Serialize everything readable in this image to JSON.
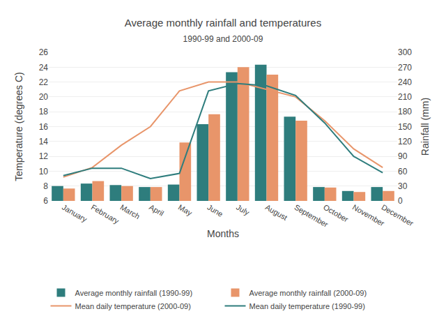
{
  "chart_data": {
    "type": "bar",
    "title": "Average monthly rainfall and temperatures",
    "subtitle": "1990-99 and 2000-09",
    "xlabel": "Months",
    "ylabel": "Temperature (degrees C)",
    "y2label": "Rainfall (mm)",
    "categories": [
      "January",
      "February",
      "March",
      "April",
      "May",
      "June",
      "July",
      "August",
      "September",
      "October",
      "November",
      "December"
    ],
    "series": [
      {
        "name": "Average monthly rainfall (1990-99)",
        "type": "bar",
        "axis": "y2",
        "color": "#2E7D7D",
        "values": [
          30,
          35,
          32,
          28,
          33,
          155,
          260,
          275,
          170,
          28,
          20,
          28
        ]
      },
      {
        "name": "Average monthly rainfall (2000-09)",
        "type": "bar",
        "axis": "y2",
        "color": "#E8956A",
        "values": [
          25,
          40,
          30,
          28,
          118,
          175,
          270,
          255,
          162,
          27,
          18,
          20
        ]
      },
      {
        "name": "Mean daily temperature (2000-09)",
        "type": "line",
        "color": "#E8956A",
        "values": [
          9.2,
          10.5,
          13.5,
          16.0,
          20.8,
          22.0,
          22.0,
          21.0,
          20.0,
          16.8,
          13.0,
          10.5
        ]
      },
      {
        "name": "Mean daily temperature (1990-99)",
        "type": "line",
        "color": "#2E7D7D",
        "values": [
          9.4,
          10.4,
          10.4,
          9.0,
          9.7,
          20.8,
          21.8,
          21.5,
          20.2,
          16.5,
          12.0,
          9.8
        ]
      }
    ],
    "ylim": [
      6.0,
      26.0
    ],
    "yticks": [
      6.0,
      8.0,
      10.0,
      12.0,
      14.0,
      16.0,
      18.0,
      20.0,
      22.0,
      24.0,
      26.0
    ],
    "y2lim": [
      0,
      300
    ],
    "y2ticks": [
      0,
      30,
      60,
      90,
      120,
      150,
      180,
      210,
      240,
      270,
      300
    ],
    "grid": true,
    "legend": "bottom"
  }
}
